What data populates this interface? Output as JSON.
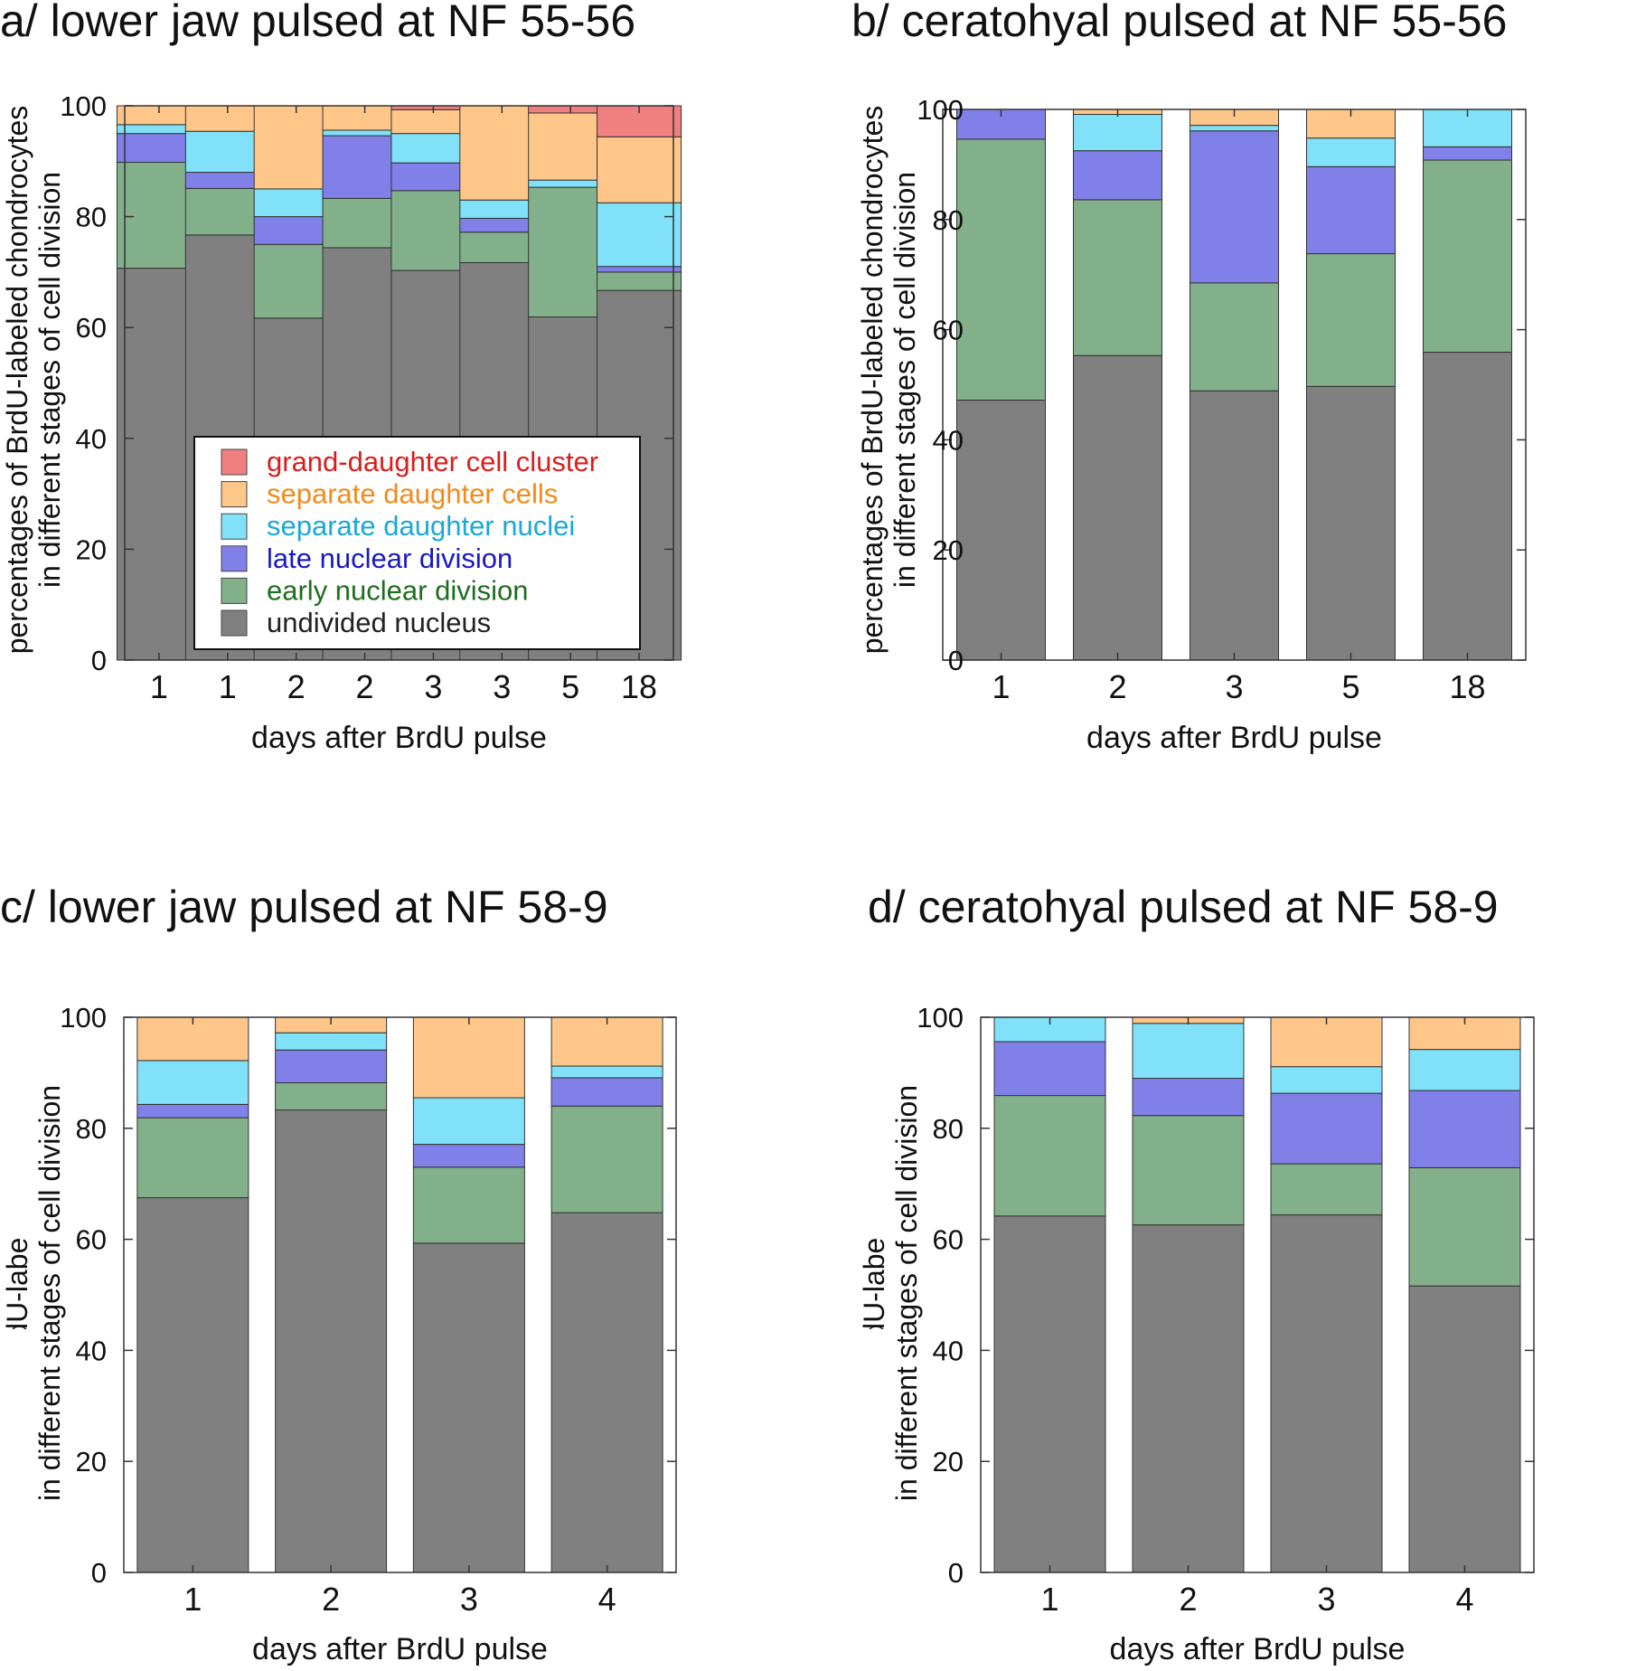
{
  "legend": {
    "entries": [
      {
        "label": "grand-daughter cell cluster",
        "fill": "#f08080",
        "text_color": "#dd1c1c"
      },
      {
        "label": "separate daughter cells",
        "fill": "#ffc68a",
        "text_color": "#f28a1c"
      },
      {
        "label": "separate daughter nuclei",
        "fill": "#80e1f8",
        "text_color": "#1aa8d8"
      },
      {
        "label": "late nuclear division",
        "fill": "#8080e8",
        "text_color": "#1a1ac0"
      },
      {
        "label": "early nuclear division",
        "fill": "#82b08a",
        "text_color": "#1e6e1e"
      },
      {
        "label": "undivided nucleus",
        "fill": "#808080",
        "text_color": "#222222"
      }
    ]
  },
  "chart_data": [
    {
      "id": "a",
      "type": "bar",
      "stacked": true,
      "title": "a/ lower jaw pulsed at NF 55-56",
      "xlabel": "days after BrdU pulse",
      "ylabel_line1": "percentages of BrdU-labeled chondrocytes",
      "ylabel_line2": "in different stages of cell division",
      "ylim": [
        0,
        100
      ],
      "yticks": [
        0,
        20,
        40,
        60,
        80,
        100
      ],
      "categories": [
        "1",
        "1",
        "2",
        "2",
        "3",
        "3",
        "5",
        "18"
      ],
      "legend_shown": true,
      "series": [
        {
          "name": "undivided nucleus",
          "values": [
            70.7,
            76.7,
            61.7,
            74.4,
            70.3,
            71.7,
            61.9,
            66.7
          ]
        },
        {
          "name": "early nuclear division",
          "values": [
            19.1,
            8.4,
            13.3,
            8.9,
            14.4,
            5.5,
            23.4,
            3.3
          ]
        },
        {
          "name": "late nuclear division",
          "values": [
            5.2,
            2.9,
            5.0,
            11.3,
            5.0,
            2.5,
            0.0,
            1.0
          ]
        },
        {
          "name": "separate daughter nuclei",
          "values": [
            1.6,
            7.4,
            5.0,
            1.0,
            5.3,
            3.3,
            1.3,
            11.5
          ]
        },
        {
          "name": "separate daughter cells",
          "values": [
            3.4,
            4.6,
            15.0,
            4.4,
            4.3,
            17.0,
            12.1,
            11.9
          ]
        },
        {
          "name": "grand-daughter cell cluster",
          "values": [
            0.0,
            0.0,
            0.0,
            0.0,
            0.7,
            0.0,
            1.3,
            5.6
          ]
        }
      ]
    },
    {
      "id": "b",
      "type": "bar",
      "stacked": true,
      "title": "b/ ceratohyal pulsed at NF 55-56",
      "xlabel": "days after BrdU pulse",
      "ylabel_line1": "percentages of BrdU-labeled chondrocytes",
      "ylabel_line2": "in different stages of cell division",
      "ylim": [
        0,
        100
      ],
      "yticks": [
        0,
        20,
        40,
        60,
        80,
        100
      ],
      "categories": [
        "1",
        "2",
        "3",
        "5",
        "18"
      ],
      "legend_shown": false,
      "series": [
        {
          "name": "undivided nucleus",
          "values": [
            47.2,
            55.3,
            48.9,
            49.7,
            55.9
          ]
        },
        {
          "name": "early nuclear division",
          "values": [
            47.4,
            28.3,
            19.6,
            24.1,
            34.9
          ]
        },
        {
          "name": "late nuclear division",
          "values": [
            5.4,
            8.9,
            27.6,
            15.8,
            2.4
          ]
        },
        {
          "name": "separate daughter nuclei",
          "values": [
            0.0,
            6.6,
            1.0,
            5.2,
            6.8
          ]
        },
        {
          "name": "separate daughter cells",
          "values": [
            0.0,
            0.9,
            2.9,
            5.2,
            0.0
          ]
        },
        {
          "name": "grand-daughter cell cluster",
          "values": [
            0.0,
            0.0,
            0.0,
            0.0,
            0.0
          ]
        }
      ]
    },
    {
      "id": "c",
      "type": "bar",
      "stacked": true,
      "title": "c/ lower jaw pulsed at NF 58-9",
      "xlabel": "days after BrdU pulse",
      "ylabel_line1": "percentages of BrdU-labeled chondrocytes",
      "ylabel_line2": "in different stages of cell division",
      "ylim": [
        0,
        100
      ],
      "yticks": [
        0,
        20,
        40,
        60,
        80,
        100
      ],
      "categories": [
        "1",
        "2",
        "3",
        "4"
      ],
      "legend_shown": false,
      "series": [
        {
          "name": "undivided nucleus",
          "values": [
            67.5,
            83.3,
            59.3,
            64.8
          ]
        },
        {
          "name": "early nuclear division",
          "values": [
            14.4,
            4.9,
            13.7,
            19.2
          ]
        },
        {
          "name": "late nuclear division",
          "values": [
            2.4,
            5.9,
            4.1,
            5.1
          ]
        },
        {
          "name": "separate daughter nuclei",
          "values": [
            7.9,
            3.1,
            8.4,
            2.1
          ]
        },
        {
          "name": "separate daughter cells",
          "values": [
            7.8,
            2.8,
            14.5,
            8.8
          ]
        },
        {
          "name": "grand-daughter cell cluster",
          "values": [
            0.0,
            0.0,
            0.0,
            0.0
          ]
        }
      ]
    },
    {
      "id": "d",
      "type": "bar",
      "stacked": true,
      "title": "d/ ceratohyal pulsed at NF 58-9",
      "xlabel": "days after BrdU pulse",
      "ylabel_line1": "percentages of BrdU-labeled chondrocytes",
      "ylabel_line2": "in different stages of cell division",
      "ylim": [
        0,
        100
      ],
      "yticks": [
        0,
        20,
        40,
        60,
        80,
        100
      ],
      "categories": [
        "1",
        "2",
        "3",
        "4"
      ],
      "legend_shown": false,
      "series": [
        {
          "name": "undivided nucleus",
          "values": [
            64.2,
            62.6,
            64.4,
            51.6
          ]
        },
        {
          "name": "early nuclear division",
          "values": [
            21.7,
            19.7,
            9.2,
            21.3
          ]
        },
        {
          "name": "late nuclear division",
          "values": [
            9.7,
            6.7,
            12.7,
            13.9
          ]
        },
        {
          "name": "separate daughter nuclei",
          "values": [
            4.4,
            9.9,
            4.8,
            7.4
          ]
        },
        {
          "name": "separate daughter cells",
          "values": [
            0.0,
            1.1,
            8.9,
            5.8
          ]
        },
        {
          "name": "grand-daughter cell cluster",
          "values": [
            0.0,
            0.0,
            0.0,
            0.0
          ]
        }
      ]
    }
  ]
}
